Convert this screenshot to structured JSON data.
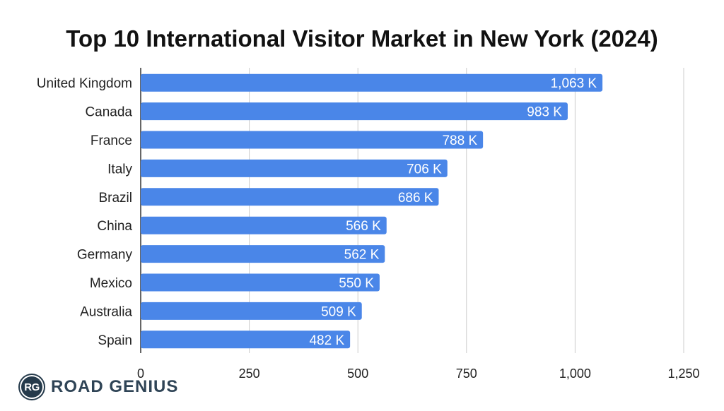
{
  "chart_data": {
    "type": "bar",
    "orientation": "horizontal",
    "title": "Top 10 International Visitor Market in New York (2024)",
    "categories": [
      "United Kingdom",
      "Canada",
      "France",
      "Italy",
      "Brazil",
      "China",
      "Germany",
      "Mexico",
      "Australia",
      "Spain"
    ],
    "values": [
      1063,
      983,
      788,
      706,
      686,
      566,
      562,
      550,
      509,
      482
    ],
    "data_labels": [
      "1,063 K",
      "983 K",
      "788 K",
      "706 K",
      "686 K",
      "566 K",
      "562 K",
      "550 K",
      "509 K",
      "482 K"
    ],
    "xlim": [
      0,
      1250
    ],
    "xticks": [
      0,
      250,
      500,
      750,
      1000,
      1250
    ],
    "xtick_labels": [
      "0",
      "250",
      "500",
      "750",
      "1,000",
      "1,250"
    ],
    "grid": "vertical",
    "bar_color": "#4a86e8"
  },
  "logo": {
    "badge": "RG",
    "name": "ROAD GENIUS"
  }
}
